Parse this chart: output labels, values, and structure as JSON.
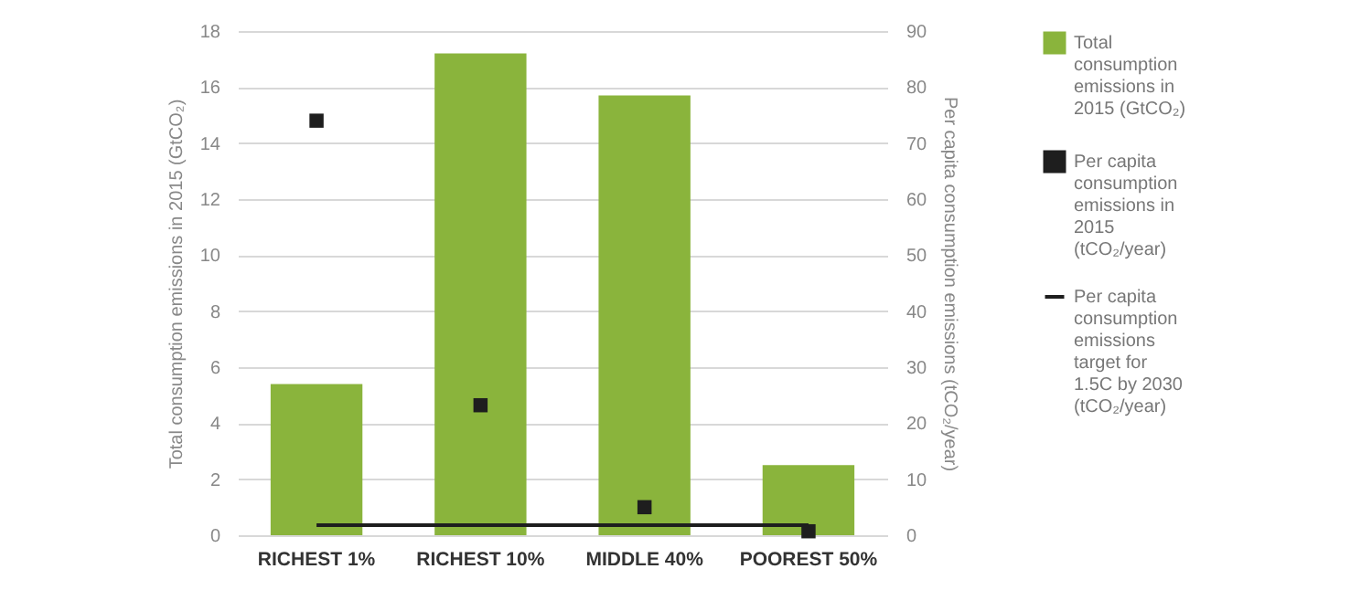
{
  "chart_data": {
    "type": "bar",
    "categories": [
      "RICHEST 1%",
      "RICHEST 10%",
      "MIDDLE 40%",
      "POOREST 50%"
    ],
    "ylabel": "Total consumption emissions in 2015 (GtCO₂)",
    "y2label": "Per capita consumption emissions  (tCO₂/year)",
    "ylim": [
      0,
      18
    ],
    "yticks": [
      0,
      2,
      4,
      6,
      8,
      10,
      12,
      14,
      16,
      18
    ],
    "y2lim": [
      0,
      90
    ],
    "y2ticks": [
      0,
      10,
      20,
      30,
      40,
      50,
      60,
      70,
      80,
      90
    ],
    "grid": "y",
    "legend": "right",
    "series": [
      {
        "name": "Total consumption emissions in 2015 (GtCO₂)",
        "color": "#8ab43c",
        "values": [
          5.4,
          17.2,
          15.7,
          2.5
        ]
      },
      {
        "name": "Per capita consumption emissions in 2015 (tCO₂/year)",
        "type": "scatter",
        "axis": "y2",
        "marker": "square",
        "color": "#1e1e1e",
        "values": [
          74,
          23.2,
          5,
          0.7
        ]
      },
      {
        "name": "Per capita consumption emissions target for 1.5C by 2030 (tCO₂/year)",
        "type": "line",
        "axis": "y2",
        "color": "#1e1e1e",
        "values": [
          1.8,
          1.8,
          1.8,
          1.8
        ]
      }
    ]
  }
}
